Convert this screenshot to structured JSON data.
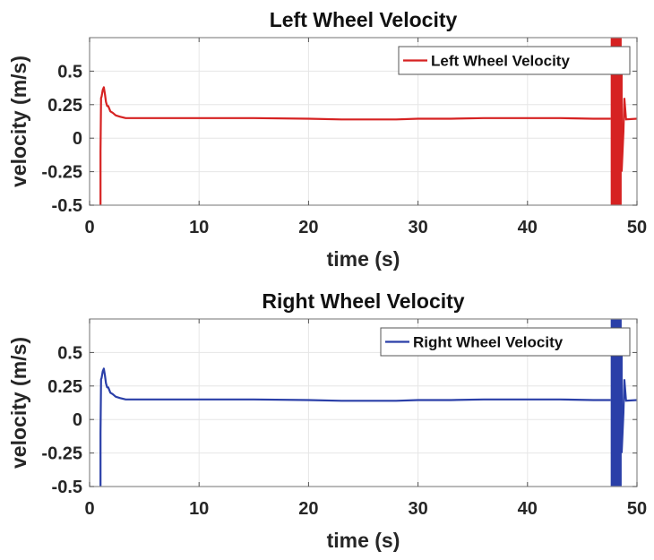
{
  "chart_data": [
    {
      "type": "line",
      "title": "Left Wheel Velocity",
      "xlabel": "time (s)",
      "ylabel": "velocity (m/s)",
      "xlim": [
        0,
        50
      ],
      "ylim": [
        -0.5,
        0.75
      ],
      "xticks": [
        0,
        10,
        20,
        30,
        40,
        50
      ],
      "xtick_labels": [
        "0",
        "10",
        "20",
        "30",
        "40",
        "50"
      ],
      "yticks": [
        -0.5,
        -0.25,
        0,
        0.25,
        0.5
      ],
      "ytick_labels": [
        "-0.5",
        "-0.25",
        "0",
        "0.25",
        "0.5"
      ],
      "grid": true,
      "legend": {
        "placement": "top-right",
        "entries": [
          "Left Wheel Velocity"
        ]
      },
      "series": [
        {
          "name": "Left Wheel Velocity",
          "color": "#d62222",
          "x": [
            1.0,
            1.0,
            1.05,
            1.1,
            1.2,
            1.3,
            1.4,
            1.5,
            1.6,
            1.7,
            1.9,
            2.1,
            2.4,
            2.8,
            3.3,
            4.0,
            6,
            10,
            15,
            20,
            23,
            25,
            28,
            30,
            33,
            36,
            40,
            43,
            46,
            47.6
          ],
          "y": [
            -0.5,
            -0.1,
            0.3,
            0.31,
            0.36,
            0.38,
            0.33,
            0.27,
            0.24,
            0.24,
            0.2,
            0.19,
            0.17,
            0.16,
            0.15,
            0.15,
            0.15,
            0.15,
            0.15,
            0.145,
            0.14,
            0.14,
            0.14,
            0.145,
            0.145,
            0.15,
            0.15,
            0.15,
            0.145,
            0.145
          ],
          "oscillation": {
            "x_start": 47.6,
            "x_end": 48.6,
            "y_min": -0.5,
            "y_max": 0.75,
            "settle_x": 49.0,
            "settle_y": 0.14,
            "end_x": 50,
            "end_y": 0.145
          }
        }
      ]
    },
    {
      "type": "line",
      "title": "Right Wheel Velocity",
      "xlabel": "time (s)",
      "ylabel": "velocity (m/s)",
      "xlim": [
        0,
        50
      ],
      "ylim": [
        -0.5,
        0.75
      ],
      "xticks": [
        0,
        10,
        20,
        30,
        40,
        50
      ],
      "xtick_labels": [
        "0",
        "10",
        "20",
        "30",
        "40",
        "50"
      ],
      "yticks": [
        -0.5,
        -0.25,
        0,
        0.25,
        0.5
      ],
      "ytick_labels": [
        "-0.5",
        "-0.25",
        "0",
        "0.25",
        "0.5"
      ],
      "grid": true,
      "legend": {
        "placement": "top-right",
        "entries": [
          "Right Wheel Velocity"
        ]
      },
      "series": [
        {
          "name": "Right Wheel Velocity",
          "color": "#2a3fa8",
          "x": [
            1.0,
            1.0,
            1.05,
            1.1,
            1.2,
            1.3,
            1.4,
            1.5,
            1.6,
            1.7,
            1.9,
            2.1,
            2.4,
            2.8,
            3.3,
            4.0,
            6,
            10,
            15,
            20,
            23,
            25,
            28,
            30,
            33,
            36,
            40,
            43,
            46,
            47.6
          ],
          "y": [
            -0.5,
            -0.1,
            0.3,
            0.31,
            0.36,
            0.38,
            0.33,
            0.27,
            0.24,
            0.24,
            0.2,
            0.19,
            0.17,
            0.16,
            0.15,
            0.15,
            0.15,
            0.15,
            0.15,
            0.145,
            0.14,
            0.14,
            0.14,
            0.145,
            0.145,
            0.15,
            0.15,
            0.15,
            0.145,
            0.145
          ],
          "oscillation": {
            "x_start": 47.6,
            "x_end": 48.6,
            "y_min": -0.5,
            "y_max": 0.75,
            "settle_x": 49.0,
            "settle_y": 0.14,
            "end_x": 50,
            "end_y": 0.145
          }
        }
      ]
    }
  ]
}
